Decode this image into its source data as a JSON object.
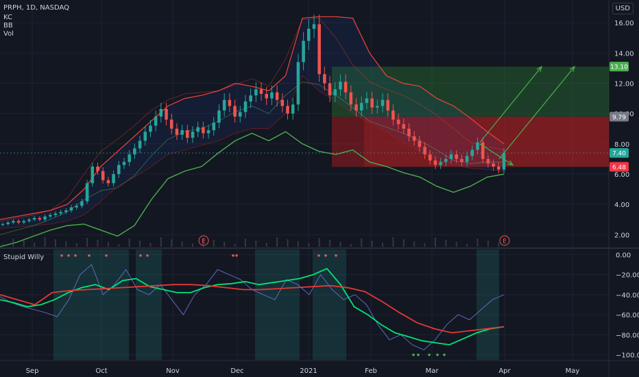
{
  "header": {
    "symbol_line": "PRPH, 1D, NASDAQ",
    "indicators": [
      "KC",
      "BB",
      "Vol"
    ],
    "currency": "USD"
  },
  "oscillator_label": "Stupid Willy",
  "earnings_marker": "E",
  "colors": {
    "background": "#131722",
    "grid": "#1f2330",
    "up": "#26a69a",
    "down": "#ef5350",
    "bb": "#4caf50",
    "kc": "#f44336",
    "text": "#d1d4dc"
  },
  "chart_data": [
    {
      "type": "candlestick",
      "title": "PRPH, 1D, NASDAQ",
      "x_ticks": [
        "Sep",
        "Oct",
        "Nov",
        "Dec",
        "2021",
        "Feb",
        "Mar",
        "Apr",
        "May"
      ],
      "y_ticks": [
        2.0,
        4.0,
        6.0,
        8.0,
        10.0,
        12.0,
        14.0,
        16.0
      ],
      "ylim": [
        1.2,
        17.5
      ],
      "price_labels": [
        {
          "text": "13.10",
          "value": 13.1,
          "color": "#4caf50"
        },
        {
          "text": "9.79",
          "value": 9.79,
          "color": "#787b86"
        },
        {
          "text": "7.40",
          "value": 7.4,
          "color": "#26a69a"
        },
        {
          "text": "6.48",
          "value": 6.48,
          "color": "#f23645"
        }
      ],
      "closes": [
        2.7,
        2.8,
        2.9,
        2.8,
        2.9,
        3.0,
        3.1,
        3.0,
        3.2,
        3.3,
        3.4,
        3.5,
        3.6,
        3.8,
        3.9,
        4.2,
        5.4,
        6.5,
        6.2,
        5.6,
        5.4,
        6.0,
        6.6,
        6.8,
        7.3,
        7.7,
        8.2,
        8.8,
        9.2,
        9.8,
        10.3,
        9.6,
        9.0,
        8.6,
        8.9,
        8.4,
        8.8,
        9.1,
        8.7,
        8.9,
        9.4,
        10.2,
        10.9,
        10.5,
        9.8,
        10.1,
        10.8,
        11.2,
        11.6,
        11.3,
        11.0,
        11.4,
        10.9,
        10.5,
        10.0,
        10.6,
        13.4,
        14.8,
        15.6,
        15.9,
        12.6,
        12.0,
        11.2,
        11.6,
        12.1,
        11.4,
        10.6,
        10.2,
        10.7,
        11.0,
        10.4,
        10.5,
        10.9,
        10.2,
        9.6,
        9.3,
        9.0,
        8.5,
        8.2,
        7.8,
        7.3,
        6.9,
        6.6,
        6.8,
        7.0,
        7.3,
        7.0,
        6.8,
        7.2,
        7.6,
        8.1,
        7.0,
        6.7,
        6.5,
        6.3,
        7.4
      ],
      "overlays": {
        "keltner_upper": [
          3.0,
          3.2,
          3.4,
          3.6,
          4.0,
          5.0,
          6.5,
          7.5,
          8.5,
          9.5,
          10.5,
          11.0,
          11.2,
          11.5,
          12.0,
          11.8,
          11.5,
          12.5,
          16.3,
          16.4,
          16.4,
          16.3,
          14.0,
          12.5,
          12.0,
          11.8,
          11.0,
          10.5,
          9.7,
          8.8,
          8.0
        ],
        "keltner_lower": [
          2.4,
          2.5,
          2.6,
          2.7,
          2.9,
          3.3,
          4.2,
          5.2,
          5.8,
          6.5,
          7.3,
          7.6,
          7.9,
          8.2,
          8.7,
          9.0,
          9.0,
          10.0,
          12.5,
          11.5,
          10.8,
          10.0,
          9.4,
          8.8,
          8.1,
          7.5,
          6.9,
          6.6,
          6.4,
          6.3,
          6.2
        ],
        "bollinger_upper": [
          2.9,
          3.1,
          3.3,
          3.6,
          4.4,
          6.0,
          7.5,
          8.3,
          9.2,
          10.2,
          10.9,
          11.3,
          11.4,
          11.5,
          11.9,
          12.3,
          11.8,
          13.6,
          16.2,
          16.3,
          15.0,
          13.2,
          12.1,
          11.6,
          11.2,
          10.6,
          9.9,
          9.0,
          8.1,
          7.8,
          7.6
        ],
        "bollinger_lower": [
          1.2,
          1.5,
          1.9,
          2.3,
          2.6,
          2.7,
          2.3,
          1.9,
          2.6,
          4.3,
          5.7,
          6.2,
          6.5,
          7.4,
          8.2,
          8.7,
          8.2,
          8.8,
          8.0,
          7.5,
          7.3,
          7.6,
          6.8,
          6.5,
          6.1,
          5.8,
          5.2,
          4.8,
          5.2,
          5.8,
          6.0
        ],
        "bollinger_basis": [
          2.0,
          2.3,
          2.6,
          3.0,
          3.5,
          4.3,
          4.9,
          5.1,
          5.9,
          7.2,
          8.3,
          8.8,
          9.0,
          9.5,
          10.1,
          10.5,
          10.0,
          11.2,
          12.1,
          11.9,
          11.2,
          10.4,
          9.5,
          9.1,
          8.7,
          8.2,
          7.6,
          6.9,
          6.7,
          6.8,
          6.8
        ]
      },
      "trade_zones": {
        "zone_1": {
          "entry": 9.79,
          "target": 13.1,
          "stop": 6.48
        },
        "zone_2": {
          "entry": 6.48,
          "target": 9.79,
          "stop": 6.48
        }
      }
    },
    {
      "type": "line",
      "title": "Stupid Willy",
      "y_ticks": [
        0,
        -20,
        -40,
        -60,
        -80,
        -100
      ],
      "ylim": [
        -105,
        5
      ],
      "series": [
        {
          "values": [
            -42,
            -48,
            -52,
            -55,
            -58,
            -62,
            -45,
            -20,
            -10,
            -40,
            -30,
            -15,
            -35,
            -40,
            -30,
            -45,
            -60,
            -40,
            -30,
            -15,
            -20,
            -25,
            -35,
            -40,
            -45,
            -25,
            -30,
            -40,
            -20,
            -35,
            -45,
            -40,
            -50,
            -70,
            -85,
            -80,
            -90,
            -95,
            -85,
            -70,
            -60,
            -65,
            -55,
            -45,
            -40
          ]
        },
        {
          "values": [
            -45,
            -48,
            -52,
            -50,
            -45,
            -38,
            -33,
            -30,
            -35,
            -26,
            -24,
            -32,
            -35,
            -38,
            -38,
            -33,
            -30,
            -29,
            -27,
            -30,
            -28,
            -26,
            -24,
            -20,
            -14,
            -30,
            -52,
            -60,
            -70,
            -78,
            -82,
            -86,
            -88,
            -90,
            -84,
            -78,
            -74,
            -72
          ]
        },
        {
          "values": [
            -40,
            -45,
            -50,
            -38,
            -36,
            -35,
            -34,
            -33,
            -32,
            -31,
            -30,
            -30,
            -31,
            -33,
            -35,
            -35,
            -34,
            -33,
            -32,
            -31,
            -33,
            -37,
            -47,
            -58,
            -68,
            -74,
            -78,
            -76,
            -74,
            -72
          ]
        }
      ]
    }
  ]
}
